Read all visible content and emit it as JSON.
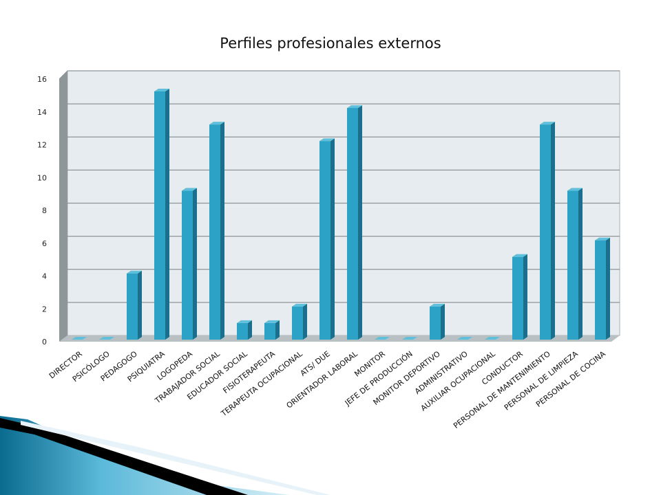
{
  "chart_data": {
    "type": "bar",
    "title": "Perfiles profesionales externos",
    "xlabel": "",
    "ylabel": "",
    "ylim": [
      0,
      16
    ],
    "yticks": [
      0,
      2,
      4,
      6,
      8,
      10,
      12,
      14,
      16
    ],
    "grid": true,
    "legend": "none",
    "bar_color": "#2ca3c6",
    "bar_side_color": "#1a6f8c",
    "bar_top_color": "#5fc0dc",
    "categories": [
      "DIRECTOR",
      "PSICÓLOGO",
      "PEDAGOGO",
      "PSIQUIATRA",
      "LOGOPEDA",
      "TRABAJADOR SOCIAL",
      "EDUCADOR SOCIAL",
      "FISIOTERAPEUTA",
      "TERAPEUTA OCUPACIONAL",
      "ATS/ DUE",
      "ORIENTADOR LABORAL",
      "MONITOR",
      "JEFE DE PRODUCCIÓN",
      "MONITOR DEPORTIVO",
      "ADMINISTRATIVO",
      "AUXILIAR OCUPACIONAL",
      "CONDUCTOR",
      "PERSONAL DE MANTENIMIENTO",
      "PERSONAL DE LIMPIEZA",
      "PERSONAL DE COCINA"
    ],
    "values": [
      0,
      0,
      4,
      15,
      9,
      13,
      1,
      1,
      2,
      12,
      14,
      0,
      0,
      2,
      0,
      0,
      5,
      13,
      9,
      6
    ]
  }
}
